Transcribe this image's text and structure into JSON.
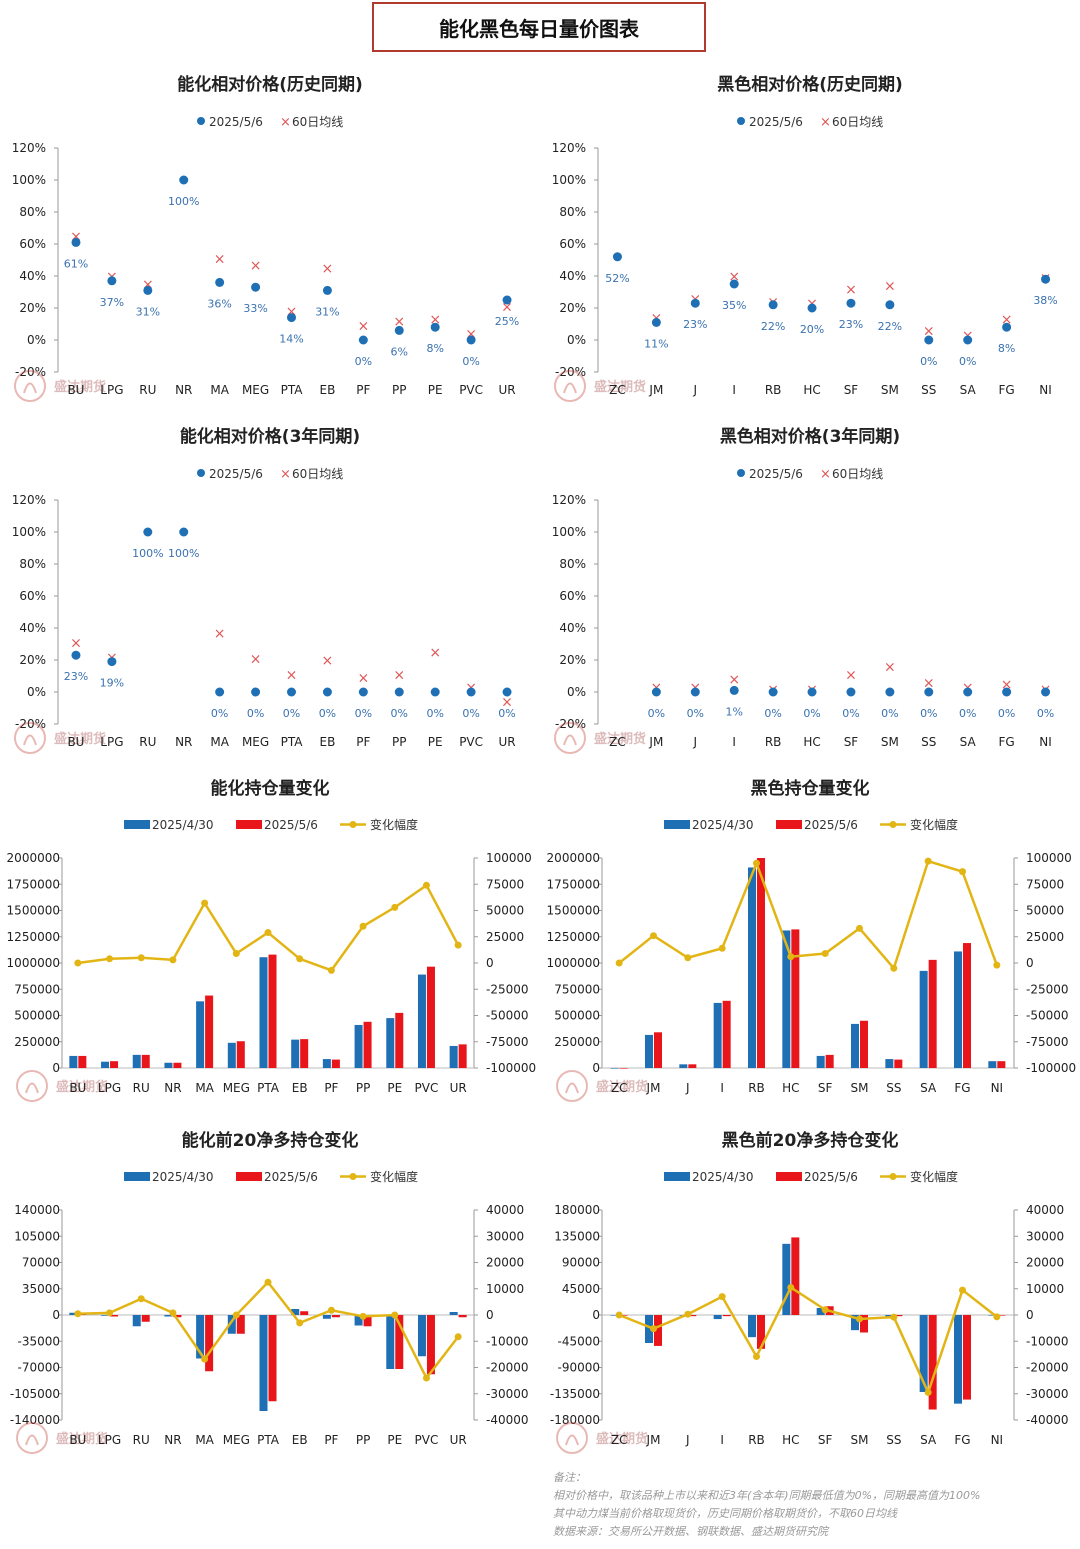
{
  "page": {
    "title": "能化黑色每日量价图表",
    "notes": [
      "备注：",
      "相对价格中，取该品种上市以来和近3年(含本年)同期最低值为0%，同期最高值为100%",
      "其中动力煤当前价格取现货价，历史同期价格取期货价，不取60日均线",
      "数据来源：交易所公开数据、钢联数据、盛达期货研究院"
    ],
    "watermark": "盛达期货"
  },
  "colors": {
    "blue": "#1f6fb5",
    "red": "#e8151b",
    "gold": "#e2b515",
    "cross": "#e05555",
    "point": "#1f6fb5",
    "label": "#3a72b0",
    "banner_border": "#b03a2e"
  },
  "chart_data": [
    {
      "id": "chem-hist",
      "type": "scatter",
      "title": "能化相对价格(历史同期)",
      "legend": [
        "2025/5/6",
        "60日均线"
      ],
      "categories": [
        "BU",
        "LPG",
        "RU",
        "NR",
        "MA",
        "MEG",
        "PTA",
        "EB",
        "PF",
        "PP",
        "PE",
        "PVC",
        "UR"
      ],
      "ylim": [
        -20,
        120
      ],
      "yticks": [
        "120%",
        "100%",
        "80%",
        "60%",
        "40%",
        "20%",
        "0%",
        "-20%"
      ],
      "series": [
        {
          "name": "2025/5/6",
          "values": [
            61,
            37,
            31,
            100,
            36,
            33,
            14,
            31,
            0,
            6,
            8,
            0,
            25
          ]
        },
        {
          "name": "60日均线",
          "values": [
            65,
            40,
            35,
            null,
            51,
            47,
            18,
            45,
            9,
            12,
            13,
            4,
            21
          ]
        }
      ],
      "data_labels": [
        "61%",
        "37%",
        "31%",
        "100%",
        "36%",
        "33%",
        "14%",
        "31%",
        "0%",
        "6%",
        "8%",
        "0%",
        "25%"
      ]
    },
    {
      "id": "black-hist",
      "type": "scatter",
      "title": "黑色相对价格(历史同期)",
      "legend": [
        "2025/5/6",
        "60日均线"
      ],
      "categories": [
        "ZC",
        "JM",
        "J",
        "I",
        "RB",
        "HC",
        "SF",
        "SM",
        "SS",
        "SA",
        "FG",
        "NI"
      ],
      "ylim": [
        -20,
        120
      ],
      "yticks": [
        "120%",
        "100%",
        "80%",
        "60%",
        "40%",
        "20%",
        "0%",
        "-20%"
      ],
      "series": [
        {
          "name": "2025/5/6",
          "values": [
            52,
            11,
            23,
            35,
            22,
            20,
            23,
            22,
            0,
            0,
            8,
            38
          ]
        },
        {
          "name": "60日均线",
          "values": [
            null,
            14,
            26,
            40,
            24,
            23,
            32,
            34,
            6,
            3,
            13,
            39
          ]
        }
      ],
      "data_labels": [
        "52%",
        "11%",
        "23%",
        "35%",
        "22%",
        "20%",
        "23%",
        "22%",
        "0%",
        "0%",
        "8%",
        "38%"
      ]
    },
    {
      "id": "chem-3y",
      "type": "scatter",
      "title": "能化相对价格(3年同期)",
      "legend": [
        "2025/5/6",
        "60日均线"
      ],
      "categories": [
        "BU",
        "LPG",
        "RU",
        "NR",
        "MA",
        "MEG",
        "PTA",
        "EB",
        "PF",
        "PP",
        "PE",
        "PVC",
        "UR"
      ],
      "ylim": [
        -20,
        120
      ],
      "yticks": [
        "120%",
        "100%",
        "80%",
        "60%",
        "40%",
        "20%",
        "0%",
        "-20%"
      ],
      "series": [
        {
          "name": "2025/5/6",
          "values": [
            23,
            19,
            100,
            100,
            0,
            0,
            0,
            0,
            0,
            0,
            0,
            0,
            0
          ]
        },
        {
          "name": "60日均线",
          "values": [
            31,
            22,
            null,
            null,
            37,
            21,
            11,
            20,
            9,
            11,
            25,
            3,
            -6
          ]
        }
      ],
      "data_labels": [
        "23%",
        "19%",
        "100%",
        "100%",
        "0%",
        "0%",
        "0%",
        "0%",
        "0%",
        "0%",
        "0%",
        "0%",
        "0%"
      ]
    },
    {
      "id": "black-3y",
      "type": "scatter",
      "title": "黑色相对价格(3年同期)",
      "legend": [
        "2025/5/6",
        "60日均线"
      ],
      "categories": [
        "ZC",
        "JM",
        "J",
        "I",
        "RB",
        "HC",
        "SF",
        "SM",
        "SS",
        "SA",
        "FG",
        "NI"
      ],
      "ylim": [
        -20,
        120
      ],
      "yticks": [
        "120%",
        "100%",
        "80%",
        "60%",
        "40%",
        "20%",
        "0%",
        "-20%"
      ],
      "series": [
        {
          "name": "2025/5/6",
          "values": [
            null,
            0,
            0,
            1,
            0,
            0,
            0,
            0,
            0,
            0,
            0,
            0
          ]
        },
        {
          "name": "60日均线",
          "values": [
            null,
            3,
            3,
            8,
            2,
            2,
            11,
            16,
            6,
            3,
            5,
            2
          ]
        }
      ],
      "data_labels": [
        "",
        "0%",
        "0%",
        "1%",
        "0%",
        "0%",
        "0%",
        "0%",
        "0%",
        "0%",
        "0%",
        "0%"
      ]
    },
    {
      "id": "chem-oi",
      "type": "bar",
      "title": "能化持仓量变化",
      "legend": [
        "2025/4/30",
        "2025/5/6",
        "变化幅度"
      ],
      "categories": [
        "BU",
        "LPG",
        "RU",
        "NR",
        "MA",
        "MEG",
        "PTA",
        "EB",
        "PF",
        "PP",
        "PE",
        "PVC",
        "UR"
      ],
      "ylim": [
        0,
        2000000
      ],
      "yticks": [
        "2000000",
        "1750000",
        "1500000",
        "1250000",
        "1000000",
        "750000",
        "500000",
        "250000",
        "0"
      ],
      "y2lim": [
        -100000,
        100000
      ],
      "y2ticks": [
        "100000",
        "75000",
        "50000",
        "25000",
        "0",
        "-25000",
        "-50000",
        "-75000",
        "-100000"
      ],
      "series": [
        {
          "name": "2025/4/30",
          "values": [
            115000,
            60000,
            125000,
            50000,
            635000,
            240000,
            1055000,
            270000,
            85000,
            410000,
            475000,
            890000,
            210000
          ]
        },
        {
          "name": "2025/5/6",
          "values": [
            115000,
            65000,
            125000,
            50000,
            690000,
            255000,
            1080000,
            275000,
            80000,
            440000,
            525000,
            965000,
            225000
          ]
        },
        {
          "name": "变化幅度",
          "axis": "right",
          "values": [
            0,
            4000,
            5000,
            3000,
            57000,
            9000,
            29000,
            4000,
            -7000,
            35000,
            53000,
            74000,
            17000
          ]
        }
      ]
    },
    {
      "id": "black-oi",
      "type": "bar",
      "title": "黑色持仓量变化",
      "legend": [
        "2025/4/30",
        "2025/5/6",
        "变化幅度"
      ],
      "categories": [
        "ZC",
        "JM",
        "J",
        "I",
        "RB",
        "HC",
        "SF",
        "SM",
        "SS",
        "SA",
        "FG",
        "NI"
      ],
      "ylim": [
        0,
        2000000
      ],
      "yticks": [
        "2000000",
        "1750000",
        "1500000",
        "1250000",
        "1000000",
        "750000",
        "500000",
        "250000",
        "0"
      ],
      "y2lim": [
        -100000,
        100000
      ],
      "y2ticks": [
        "100000",
        "75000",
        "50000",
        "25000",
        "0",
        "-25000",
        "-50000",
        "-75000",
        "-100000"
      ],
      "series": [
        {
          "name": "2025/4/30",
          "values": [
            0,
            315000,
            35000,
            620000,
            1910000,
            1310000,
            115000,
            420000,
            85000,
            925000,
            1110000,
            65000
          ]
        },
        {
          "name": "2025/5/6",
          "values": [
            0,
            340000,
            35000,
            640000,
            2000000,
            1320000,
            125000,
            450000,
            80000,
            1030000,
            1190000,
            65000
          ]
        },
        {
          "name": "变化幅度",
          "axis": "right",
          "values": [
            0,
            26000,
            5000,
            14000,
            95000,
            6000,
            9000,
            33000,
            -5000,
            97000,
            87000,
            -2000
          ]
        }
      ]
    },
    {
      "id": "chem-top20",
      "type": "bar",
      "title": "能化前20净多持仓变化",
      "legend": [
        "2025/4/30",
        "2025/5/6",
        "变化幅度"
      ],
      "categories": [
        "BU",
        "LPG",
        "RU",
        "NR",
        "MA",
        "MEG",
        "PTA",
        "EB",
        "PF",
        "PP",
        "PE",
        "PVC",
        "UR"
      ],
      "ylim": [
        -140000,
        140000
      ],
      "yticks": [
        "140000",
        "105000",
        "70000",
        "35000",
        "0",
        "-35000",
        "-70000",
        "-105000",
        "-140000"
      ],
      "y2lim": [
        -40000,
        40000
      ],
      "y2ticks": [
        "40000",
        "30000",
        "20000",
        "10000",
        "0",
        "-10000",
        "-20000",
        "-30000",
        "-40000"
      ],
      "series": [
        {
          "name": "2025/4/30",
          "values": [
            3000,
            -1000,
            -15000,
            -2000,
            -58000,
            -25000,
            -128000,
            8000,
            -5000,
            -14000,
            -72000,
            -55000,
            4000
          ]
        },
        {
          "name": "2025/5/6",
          "values": [
            2000,
            -2000,
            -9000,
            -3000,
            -75000,
            -25000,
            -115000,
            5000,
            -3000,
            -15000,
            -72000,
            -79000,
            -3000
          ]
        },
        {
          "name": "变化幅度",
          "axis": "right",
          "values": [
            500,
            800,
            6200,
            800,
            -16800,
            0,
            12500,
            -3000,
            1800,
            -500,
            0,
            -24000,
            -8300
          ]
        }
      ]
    },
    {
      "id": "black-top20",
      "type": "bar",
      "title": "黑色前20净多持仓变化",
      "legend": [
        "2025/4/30",
        "2025/5/6",
        "变化幅度"
      ],
      "categories": [
        "ZC",
        "JM",
        "J",
        "I",
        "RB",
        "HC",
        "SF",
        "SM",
        "SS",
        "SA",
        "FG",
        "NI"
      ],
      "ylim": [
        -180000,
        180000
      ],
      "yticks": [
        "180000",
        "135000",
        "90000",
        "45000",
        "0",
        "-45000",
        "-90000",
        "-135000",
        "-180000"
      ],
      "y2lim": [
        -40000,
        40000
      ],
      "y2ticks": [
        "40000",
        "30000",
        "20000",
        "10000",
        "0",
        "-10000",
        "-20000",
        "-30000",
        "-40000"
      ],
      "series": [
        {
          "name": "2025/4/30",
          "values": [
            0,
            -48000,
            -1000,
            -7000,
            -38000,
            122000,
            12000,
            -26000,
            -3000,
            -132000,
            -152000,
            0
          ]
        },
        {
          "name": "2025/5/6",
          "values": [
            0,
            -53000,
            -2000,
            -2000,
            -58000,
            133000,
            15000,
            -30000,
            -2000,
            -162000,
            -145000,
            0
          ]
        },
        {
          "name": "变化幅度",
          "axis": "right",
          "values": [
            0,
            -5200,
            300,
            7000,
            -15800,
            10500,
            2000,
            -1500,
            -800,
            -29500,
            9500,
            -700
          ]
        }
      ]
    }
  ]
}
